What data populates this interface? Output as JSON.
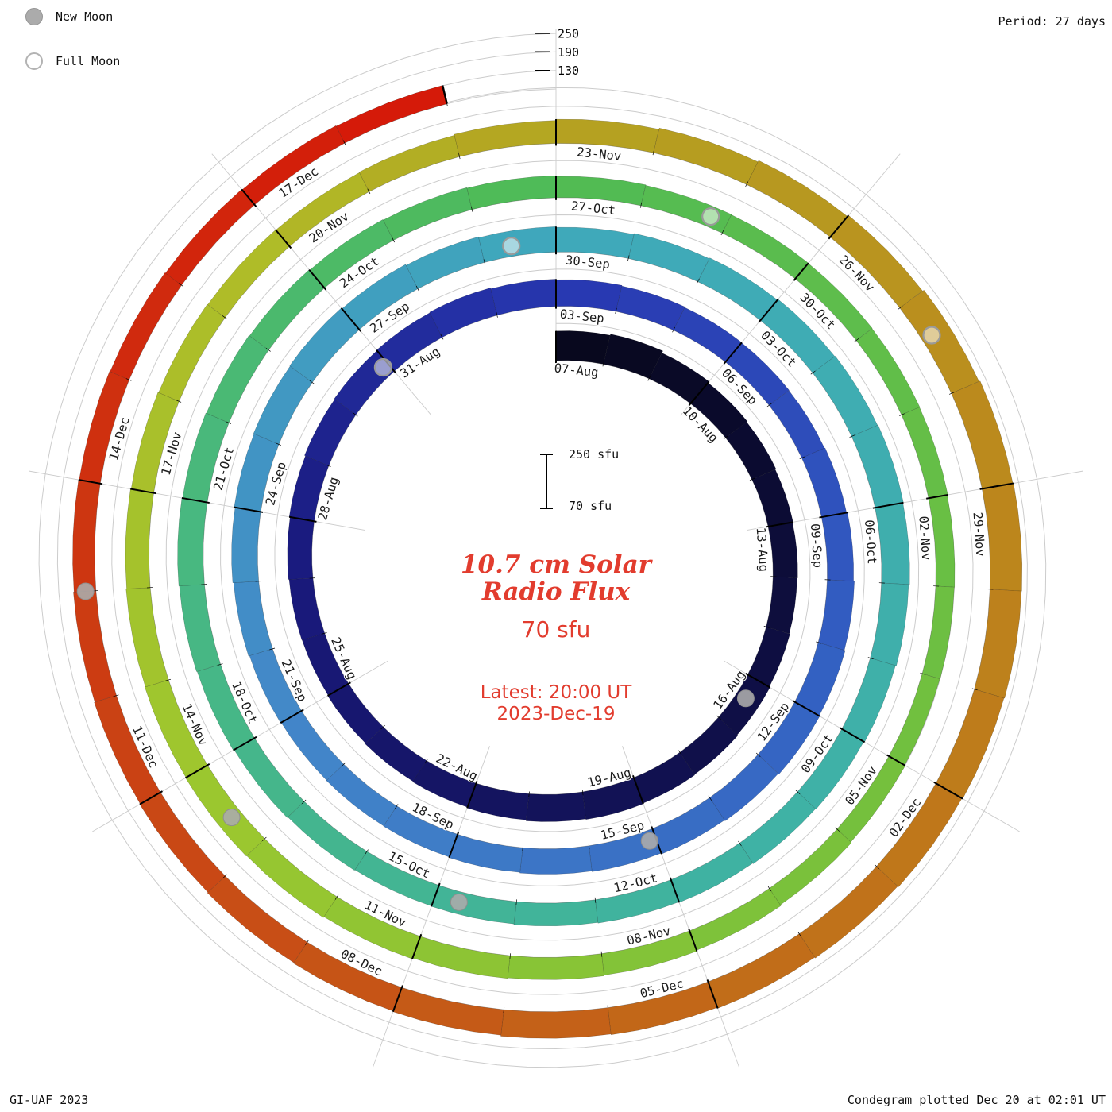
{
  "header": {
    "period_label": "Period: 27 days",
    "legend": {
      "new_moon_label": "New Moon",
      "full_moon_label": "Full Moon"
    }
  },
  "footer": {
    "credit": "GI-UAF 2023",
    "plotted_label": "Condegram plotted Dec 20 at 02:01 UT"
  },
  "center": {
    "title_line1": "10.7 cm Solar",
    "title_line2": "Radio Flux",
    "current_value": "70 sfu",
    "latest_line1": "Latest: 20:00 UT",
    "latest_line2": "2023-Dec-19",
    "scalebar_top_label": "250 sfu",
    "scalebar_bottom_label": "70 sfu",
    "accent_color": "#e23c2e"
  },
  "axis": {
    "top_ticks": [
      {
        "label": "250",
        "flux": 250
      },
      {
        "label": "190",
        "flux": 190
      },
      {
        "label": "130",
        "flux": 130
      }
    ]
  },
  "chart_data": {
    "type": "spiral-bar-condegram",
    "title": "10.7 cm Solar Radio Flux",
    "units": "sfu",
    "start_date": "2023-08-07",
    "end_date": "2023-12-19",
    "period_days": 27,
    "flux_baseline": 70,
    "flux_axis_max": 250,
    "gridline_levels": [
      70,
      130,
      190,
      250
    ],
    "date_labels": [
      "07-Aug",
      "10-Aug",
      "13-Aug",
      "16-Aug",
      "19-Aug",
      "22-Aug",
      "25-Aug",
      "28-Aug",
      "31-Aug",
      "03-Sep",
      "06-Sep",
      "09-Sep",
      "12-Sep",
      "15-Sep",
      "18-Sep",
      "21-Sep",
      "24-Sep",
      "27-Sep",
      "30-Sep",
      "03-Oct",
      "06-Oct",
      "09-Oct",
      "12-Oct",
      "15-Oct",
      "18-Oct",
      "21-Oct",
      "24-Oct",
      "27-Oct",
      "30-Oct",
      "02-Nov",
      "05-Nov",
      "08-Nov",
      "11-Nov",
      "14-Nov",
      "17-Nov",
      "20-Nov",
      "23-Nov",
      "26-Nov",
      "29-Nov",
      "02-Dec",
      "05-Dec",
      "08-Dec",
      "11-Dec",
      "14-Dec",
      "17-Dec"
    ],
    "values": [
      166,
      170,
      163,
      158,
      155,
      152,
      150,
      148,
      150,
      153,
      156,
      158,
      160,
      158,
      155,
      152,
      150,
      148,
      146,
      147,
      149,
      152,
      155,
      157,
      159,
      161,
      158,
      156,
      154,
      152,
      151,
      150,
      152,
      155,
      158,
      161,
      163,
      160,
      157,
      154,
      152,
      150,
      148,
      147,
      146,
      148,
      151,
      154,
      157,
      159,
      161,
      158,
      155,
      152,
      150,
      153,
      156,
      159,
      161,
      163,
      161,
      158,
      155,
      152,
      150,
      148,
      146,
      144,
      142,
      141,
      143,
      146,
      149,
      151,
      153,
      151,
      149,
      147,
      145,
      143,
      141,
      139,
      137,
      136,
      135,
      134,
      133,
      131,
      130,
      129,
      131,
      134,
      137,
      140,
      142,
      144,
      147,
      150,
      152,
      150,
      148,
      146,
      144,
      142,
      140,
      139,
      141,
      144,
      148,
      152,
      157,
      162,
      167,
      171,
      173,
      172,
      170,
      167,
      164,
      161,
      158,
      156,
      153,
      151,
      149,
      147,
      145,
      143,
      141,
      139,
      137,
      135,
      133,
      131,
      70
    ],
    "new_moons": [
      {
        "date": "2023-08-16",
        "d": 9.4
      },
      {
        "date": "2023-09-15",
        "d": 39.1
      },
      {
        "date": "2023-10-14",
        "d": 68.7
      },
      {
        "date": "2023-11-13",
        "d": 98.4
      },
      {
        "date": "2023-12-12",
        "d": 128.0
      }
    ],
    "full_moons": [
      {
        "date": "2023-08-30",
        "d": 23.9
      },
      {
        "date": "2023-09-29",
        "d": 53.4
      },
      {
        "date": "2023-10-28",
        "d": 82.8
      },
      {
        "date": "2023-11-27",
        "d": 112.4
      }
    ],
    "colormap": [
      [
        0.0,
        "#08081e"
      ],
      [
        0.074,
        "#10104a"
      ],
      [
        0.148,
        "#1a1a7e"
      ],
      [
        0.2,
        "#2838b2"
      ],
      [
        0.259,
        "#3360c2"
      ],
      [
        0.333,
        "#4388c9"
      ],
      [
        0.4,
        "#3fa9bb"
      ],
      [
        0.481,
        "#3fb2a4"
      ],
      [
        0.556,
        "#48b87e"
      ],
      [
        0.6,
        "#50bb55"
      ],
      [
        0.667,
        "#72c03e"
      ],
      [
        0.733,
        "#9cc72f"
      ],
      [
        0.778,
        "#b0bc28"
      ],
      [
        0.8,
        "#b4a522"
      ],
      [
        0.844,
        "#bb8a1d"
      ],
      [
        0.889,
        "#c16c19"
      ],
      [
        0.933,
        "#c94815"
      ],
      [
        0.97,
        "#d02a0e"
      ],
      [
        1.0,
        "#d61507"
      ]
    ],
    "grid_color": "#cccccc",
    "moon_marker_colors": {
      "new_fill": "#ababab",
      "full_stroke": "#9a9a9a"
    }
  }
}
